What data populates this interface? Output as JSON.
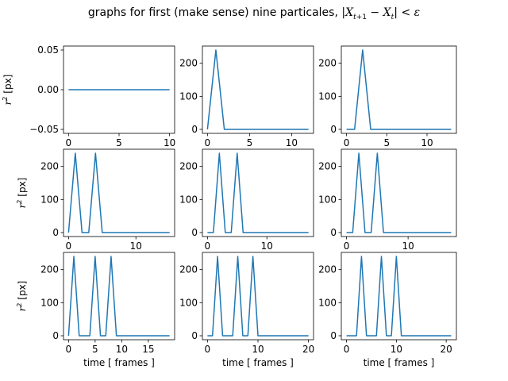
{
  "figure": {
    "title_text": "graphs for first (make sense) nine particales,",
    "title_math": "|X_{t+1} − X_t| < ε"
  },
  "chart_data": [
    {
      "type": "line",
      "xlabel": "",
      "ylabel": "r^2 [px]",
      "xlim": [
        -0.5,
        10.5
      ],
      "ylim": [
        -0.055,
        0.055
      ],
      "xticks": [
        0,
        5,
        10
      ],
      "yticks": [
        -0.05,
        0.0,
        0.05
      ],
      "ytick_labels": [
        "−0.05",
        "0.00",
        "0.05"
      ],
      "series": [
        {
          "color": "#1f77b4",
          "x": [
            0,
            1,
            2,
            3,
            4,
            5,
            6,
            7,
            8,
            9,
            10
          ],
          "y": [
            0,
            0,
            0,
            0,
            0,
            0,
            0,
            0,
            0,
            0,
            0
          ]
        }
      ]
    },
    {
      "type": "line",
      "xlabel": "",
      "ylabel": "",
      "xlim": [
        -0.6,
        12.6
      ],
      "ylim": [
        -12,
        252
      ],
      "xticks": [
        0,
        5,
        10
      ],
      "yticks": [
        0,
        100,
        200
      ],
      "series": [
        {
          "color": "#1f77b4",
          "x": [
            0,
            1,
            2,
            3,
            4,
            5,
            6,
            7,
            8,
            9,
            10,
            11,
            12
          ],
          "y": [
            0,
            240,
            0,
            0,
            0,
            0,
            0,
            0,
            0,
            0,
            0,
            0,
            0
          ]
        }
      ]
    },
    {
      "type": "line",
      "xlabel": "",
      "ylabel": "",
      "xlim": [
        -0.65,
        13.65
      ],
      "ylim": [
        -12,
        252
      ],
      "xticks": [
        0,
        5,
        10
      ],
      "yticks": [
        0,
        100,
        200
      ],
      "series": [
        {
          "color": "#1f77b4",
          "x": [
            0,
            1,
            2,
            3,
            4,
            5,
            6,
            7,
            8,
            9,
            10,
            11,
            12,
            13
          ],
          "y": [
            0,
            0,
            240,
            0,
            0,
            0,
            0,
            0,
            0,
            0,
            0,
            0,
            0,
            0
          ]
        }
      ]
    },
    {
      "type": "line",
      "xlabel": "",
      "ylabel": "r^2 [px]",
      "xlim": [
        -0.75,
        15.75
      ],
      "ylim": [
        -12,
        252
      ],
      "xticks": [
        0,
        10
      ],
      "yticks": [
        0,
        100,
        200
      ],
      "series": [
        {
          "color": "#1f77b4",
          "x": [
            0,
            1,
            2,
            3,
            4,
            5,
            6,
            7,
            8,
            9,
            10,
            11,
            12,
            13,
            14,
            15
          ],
          "y": [
            0,
            240,
            0,
            0,
            240,
            0,
            0,
            0,
            0,
            0,
            0,
            0,
            0,
            0,
            0,
            0
          ]
        }
      ]
    },
    {
      "type": "line",
      "xlabel": "",
      "ylabel": "",
      "xlim": [
        -0.85,
        17.85
      ],
      "ylim": [
        -12,
        252
      ],
      "xticks": [
        0,
        10
      ],
      "yticks": [
        0,
        100,
        200
      ],
      "series": [
        {
          "color": "#1f77b4",
          "x": [
            0,
            1,
            2,
            3,
            4,
            5,
            6,
            7,
            8,
            9,
            10,
            11,
            12,
            13,
            14,
            15,
            16,
            17
          ],
          "y": [
            0,
            0,
            240,
            0,
            0,
            240,
            0,
            0,
            0,
            0,
            0,
            0,
            0,
            0,
            0,
            0,
            0,
            0
          ]
        }
      ]
    },
    {
      "type": "line",
      "xlabel": "",
      "ylabel": "",
      "xlim": [
        -0.85,
        17.85
      ],
      "ylim": [
        -12,
        252
      ],
      "xticks": [
        0,
        10
      ],
      "yticks": [
        0,
        100,
        200
      ],
      "series": [
        {
          "color": "#1f77b4",
          "x": [
            0,
            1,
            2,
            3,
            4,
            5,
            6,
            7,
            8,
            9,
            10,
            11,
            12,
            13,
            14,
            15,
            16,
            17
          ],
          "y": [
            0,
            0,
            240,
            0,
            0,
            240,
            0,
            0,
            0,
            0,
            0,
            0,
            0,
            0,
            0,
            0,
            0,
            0
          ]
        }
      ]
    },
    {
      "type": "line",
      "xlabel": "time [ frames ]",
      "ylabel": "r^2 [px]",
      "xlim": [
        -0.95,
        19.95
      ],
      "ylim": [
        -12,
        252
      ],
      "xticks": [
        0,
        5,
        10,
        15
      ],
      "yticks": [
        0,
        100,
        200
      ],
      "series": [
        {
          "color": "#1f77b4",
          "x": [
            0,
            1,
            2,
            3,
            4,
            5,
            6,
            7,
            8,
            9,
            10,
            11,
            12,
            13,
            14,
            15,
            16,
            17,
            18,
            19
          ],
          "y": [
            0,
            240,
            0,
            0,
            0,
            240,
            0,
            0,
            240,
            0,
            0,
            0,
            0,
            0,
            0,
            0,
            0,
            0,
            0,
            0
          ]
        }
      ]
    },
    {
      "type": "line",
      "xlabel": "time [ frames ]",
      "ylabel": "",
      "xlim": [
        -1,
        21
      ],
      "ylim": [
        -12,
        252
      ],
      "xticks": [
        0,
        10,
        20
      ],
      "yticks": [
        0,
        100,
        200
      ],
      "series": [
        {
          "color": "#1f77b4",
          "x": [
            0,
            1,
            2,
            3,
            4,
            5,
            6,
            7,
            8,
            9,
            10,
            11,
            12,
            13,
            14,
            15,
            16,
            17,
            18,
            19,
            20
          ],
          "y": [
            0,
            0,
            240,
            0,
            0,
            0,
            240,
            0,
            0,
            240,
            0,
            0,
            0,
            0,
            0,
            0,
            0,
            0,
            0,
            0,
            0
          ]
        }
      ]
    },
    {
      "type": "line",
      "xlabel": "time [ frames ]",
      "ylabel": "",
      "xlim": [
        -1.05,
        22.05
      ],
      "ylim": [
        -12,
        252
      ],
      "xticks": [
        0,
        10,
        20
      ],
      "yticks": [
        0,
        100,
        200
      ],
      "series": [
        {
          "color": "#1f77b4",
          "x": [
            0,
            1,
            2,
            3,
            4,
            5,
            6,
            7,
            8,
            9,
            10,
            11,
            12,
            13,
            14,
            15,
            16,
            17,
            18,
            19,
            20,
            21
          ],
          "y": [
            0,
            0,
            0,
            240,
            0,
            0,
            0,
            240,
            0,
            0,
            240,
            0,
            0,
            0,
            0,
            0,
            0,
            0,
            0,
            0,
            0,
            0
          ]
        }
      ]
    }
  ]
}
